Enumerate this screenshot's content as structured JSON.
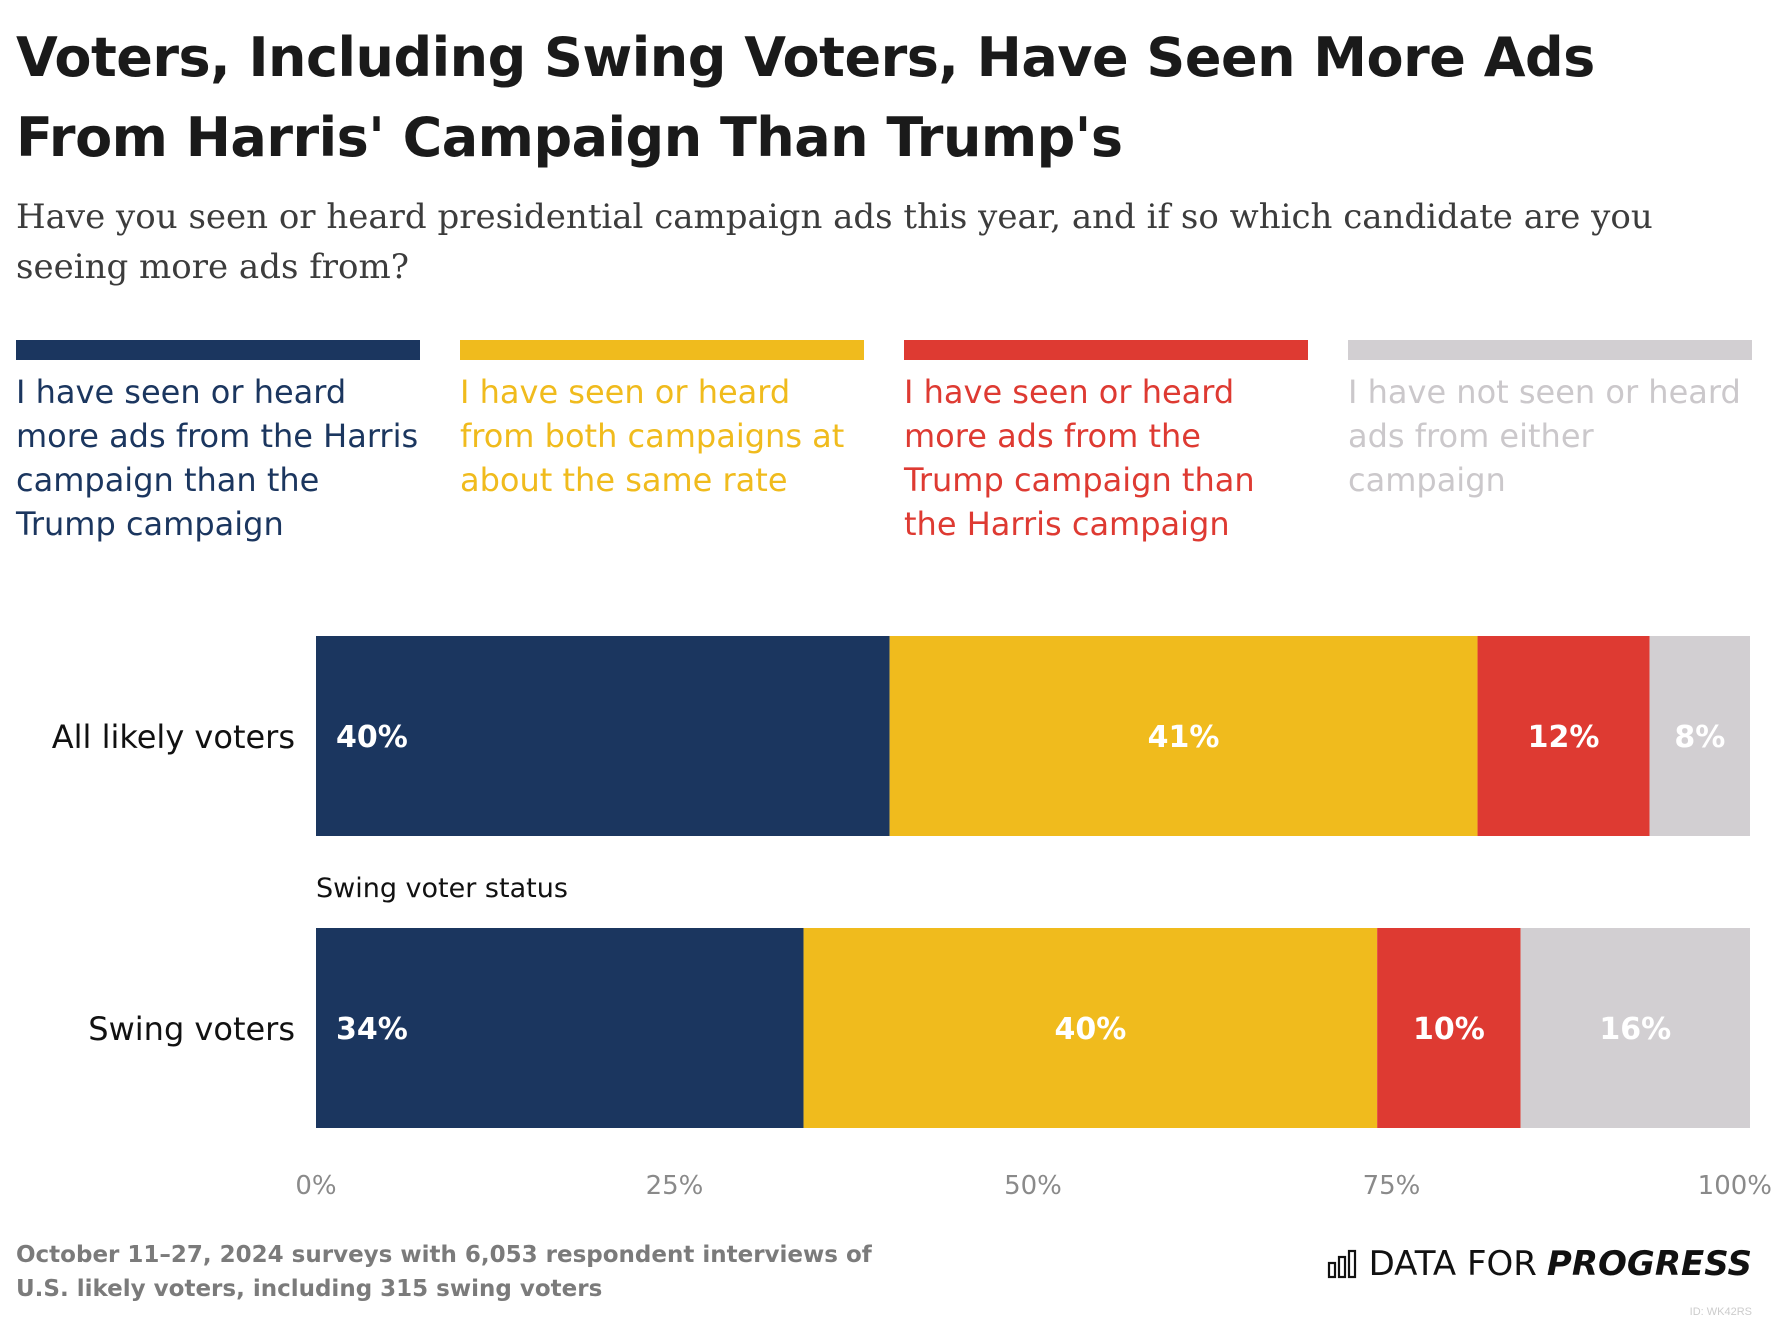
{
  "title": "Voters, Including Swing Voters, Have Seen More Ads From Harris' Campaign Than Trump's",
  "subtitle": "Have you seen or heard presidential campaign ads this year, and if so which candidate are you seeing more ads from?",
  "source": "October 11–27, 2024 surveys with 6,053 respondent interviews of U.S. likely voters, including 315 swing voters",
  "brand": {
    "part1": "DATA FOR",
    "part2": "PROGRESS",
    "id": "ID: WK42RS"
  },
  "chart_data": {
    "type": "bar",
    "orientation": "horizontal",
    "stacked": true,
    "categories": [
      "All likely voters",
      "Swing voters"
    ],
    "group_label": "Swing voter status",
    "series": [
      {
        "name": "I have seen or heard more ads from the Harris campaign than the Trump campaign",
        "color": "#1b365f",
        "values": [
          40,
          34
        ],
        "labels": [
          "40%",
          "34%"
        ]
      },
      {
        "name": "I have seen or heard from both campaigns at about the same rate",
        "color": "#f0bb1d",
        "values": [
          41,
          40
        ],
        "labels": [
          "41%",
          "40%"
        ]
      },
      {
        "name": "I have seen or heard more ads from the Trump campaign than the Harris campaign",
        "color": "#de3a32",
        "values": [
          12,
          10
        ],
        "labels": [
          "12%",
          "10%"
        ]
      },
      {
        "name": "I have not seen or heard ads from either campaign",
        "color": "#d2cfd2",
        "values": [
          8,
          16
        ],
        "labels": [
          "8%",
          "16%"
        ]
      }
    ],
    "xlim": [
      0,
      100
    ],
    "xticks": [
      "0%",
      "25%",
      "50%",
      "75%",
      "100%"
    ],
    "grid": false,
    "legend": "top"
  }
}
